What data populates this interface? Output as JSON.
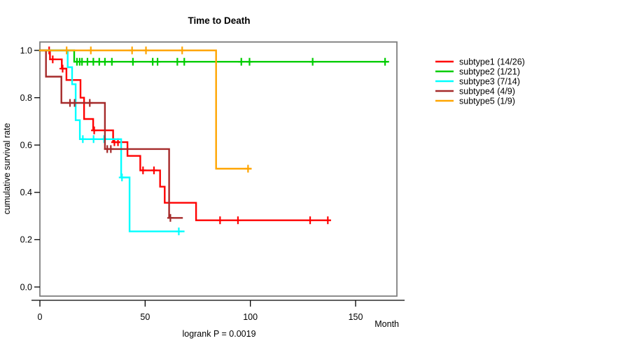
{
  "title": "Time to Death",
  "footer": "logrank P = 0.0019",
  "axes": {
    "xlabel": "Month",
    "ylabel": "cumulative survival rate",
    "x_ticks": [
      0,
      50,
      100,
      150
    ],
    "y_ticks": [
      1.0,
      0.8,
      0.6,
      0.4,
      0.2,
      0.0
    ]
  },
  "colors": {
    "box": "#808080",
    "axis": "#000000",
    "text": "#000000"
  },
  "chart_data": {
    "type": "line",
    "variant": "kaplan-meier-step",
    "title": "Time to Death",
    "xlabel": "Month",
    "ylabel": "cumulative survival rate",
    "annotation": "logrank P = 0.0019",
    "xlim": [
      0,
      169
    ],
    "ylim": [
      0.0,
      1.0
    ],
    "x_ticks": [
      0,
      50,
      100,
      150
    ],
    "y_ticks": [
      1.0,
      0.8,
      0.6,
      0.4,
      0.2,
      0.0
    ],
    "grid": false,
    "legend_position": "right-outside",
    "series": [
      {
        "name": "subtype1 (14/26)",
        "color": "#FF0000",
        "steps": [
          [
            0,
            1.0
          ],
          [
            4.8,
            0.962
          ],
          [
            10.4,
            0.923
          ],
          [
            12.6,
            0.875
          ],
          [
            19.3,
            0.8
          ],
          [
            21.0,
            0.71
          ],
          [
            25.3,
            0.662
          ],
          [
            34.8,
            0.612
          ],
          [
            41.6,
            0.554
          ],
          [
            47.7,
            0.493
          ],
          [
            57.1,
            0.424
          ],
          [
            59.3,
            0.356
          ],
          [
            74.2,
            0.282
          ]
        ],
        "end_month": 137.9,
        "censors": [
          [
            4.4,
            1.0
          ],
          [
            6.1,
            0.962
          ],
          [
            10.8,
            0.923
          ],
          [
            25.8,
            0.662
          ],
          [
            35.4,
            0.612
          ],
          [
            37.1,
            0.612
          ],
          [
            49.0,
            0.493
          ],
          [
            54.2,
            0.493
          ],
          [
            85.6,
            0.282
          ],
          [
            94.1,
            0.282
          ],
          [
            128.4,
            0.282
          ],
          [
            136.8,
            0.282
          ]
        ]
      },
      {
        "name": "subtype2 (1/21)",
        "color": "#00CD00",
        "steps": [
          [
            0,
            1.0
          ],
          [
            16.3,
            0.952
          ]
        ],
        "end_month": 165.5,
        "censors": [
          [
            17.6,
            0.952
          ],
          [
            18.9,
            0.952
          ],
          [
            20.0,
            0.952
          ],
          [
            22.6,
            0.952
          ],
          [
            25.4,
            0.952
          ],
          [
            28.2,
            0.952
          ],
          [
            30.9,
            0.952
          ],
          [
            34.2,
            0.952
          ],
          [
            44.2,
            0.952
          ],
          [
            53.6,
            0.952
          ],
          [
            55.9,
            0.952
          ],
          [
            65.3,
            0.952
          ],
          [
            68.6,
            0.952
          ],
          [
            95.7,
            0.952
          ],
          [
            99.6,
            0.952
          ],
          [
            129.6,
            0.952
          ],
          [
            164.0,
            0.952
          ]
        ]
      },
      {
        "name": "subtype3 (7/14)",
        "color": "#00FFFF",
        "steps": [
          [
            0,
            1.0
          ],
          [
            13.2,
            0.929
          ],
          [
            15.3,
            0.857
          ],
          [
            17.0,
            0.705
          ],
          [
            19.0,
            0.625
          ],
          [
            38.6,
            0.463
          ],
          [
            42.6,
            0.235
          ]
        ],
        "end_month": 68.3,
        "censors": [
          [
            20.4,
            0.625
          ],
          [
            25.5,
            0.625
          ],
          [
            30.5,
            0.625
          ],
          [
            39.0,
            0.463
          ],
          [
            66.0,
            0.235
          ]
        ]
      },
      {
        "name": "subtype4 (4/9)",
        "color": "#A52A2A",
        "steps": [
          [
            0,
            1.0
          ],
          [
            2.9,
            0.889
          ],
          [
            10.2,
            0.778
          ],
          [
            30.9,
            0.583
          ],
          [
            61.4,
            0.292
          ]
        ],
        "end_month": 67.5,
        "censors": [
          [
            14.3,
            0.778
          ],
          [
            16.5,
            0.778
          ],
          [
            23.7,
            0.778
          ],
          [
            32.0,
            0.583
          ],
          [
            33.7,
            0.583
          ],
          [
            62.0,
            0.292
          ]
        ]
      },
      {
        "name": "subtype5 (1/9)",
        "color": "#FFA500",
        "steps": [
          [
            0,
            1.0
          ],
          [
            83.7,
            0.5
          ]
        ],
        "end_month": 100.2,
        "censors": [
          [
            12.7,
            1.0
          ],
          [
            24.2,
            1.0
          ],
          [
            43.8,
            1.0
          ],
          [
            50.4,
            1.0
          ],
          [
            67.6,
            1.0
          ],
          [
            98.9,
            0.5
          ]
        ]
      }
    ]
  }
}
